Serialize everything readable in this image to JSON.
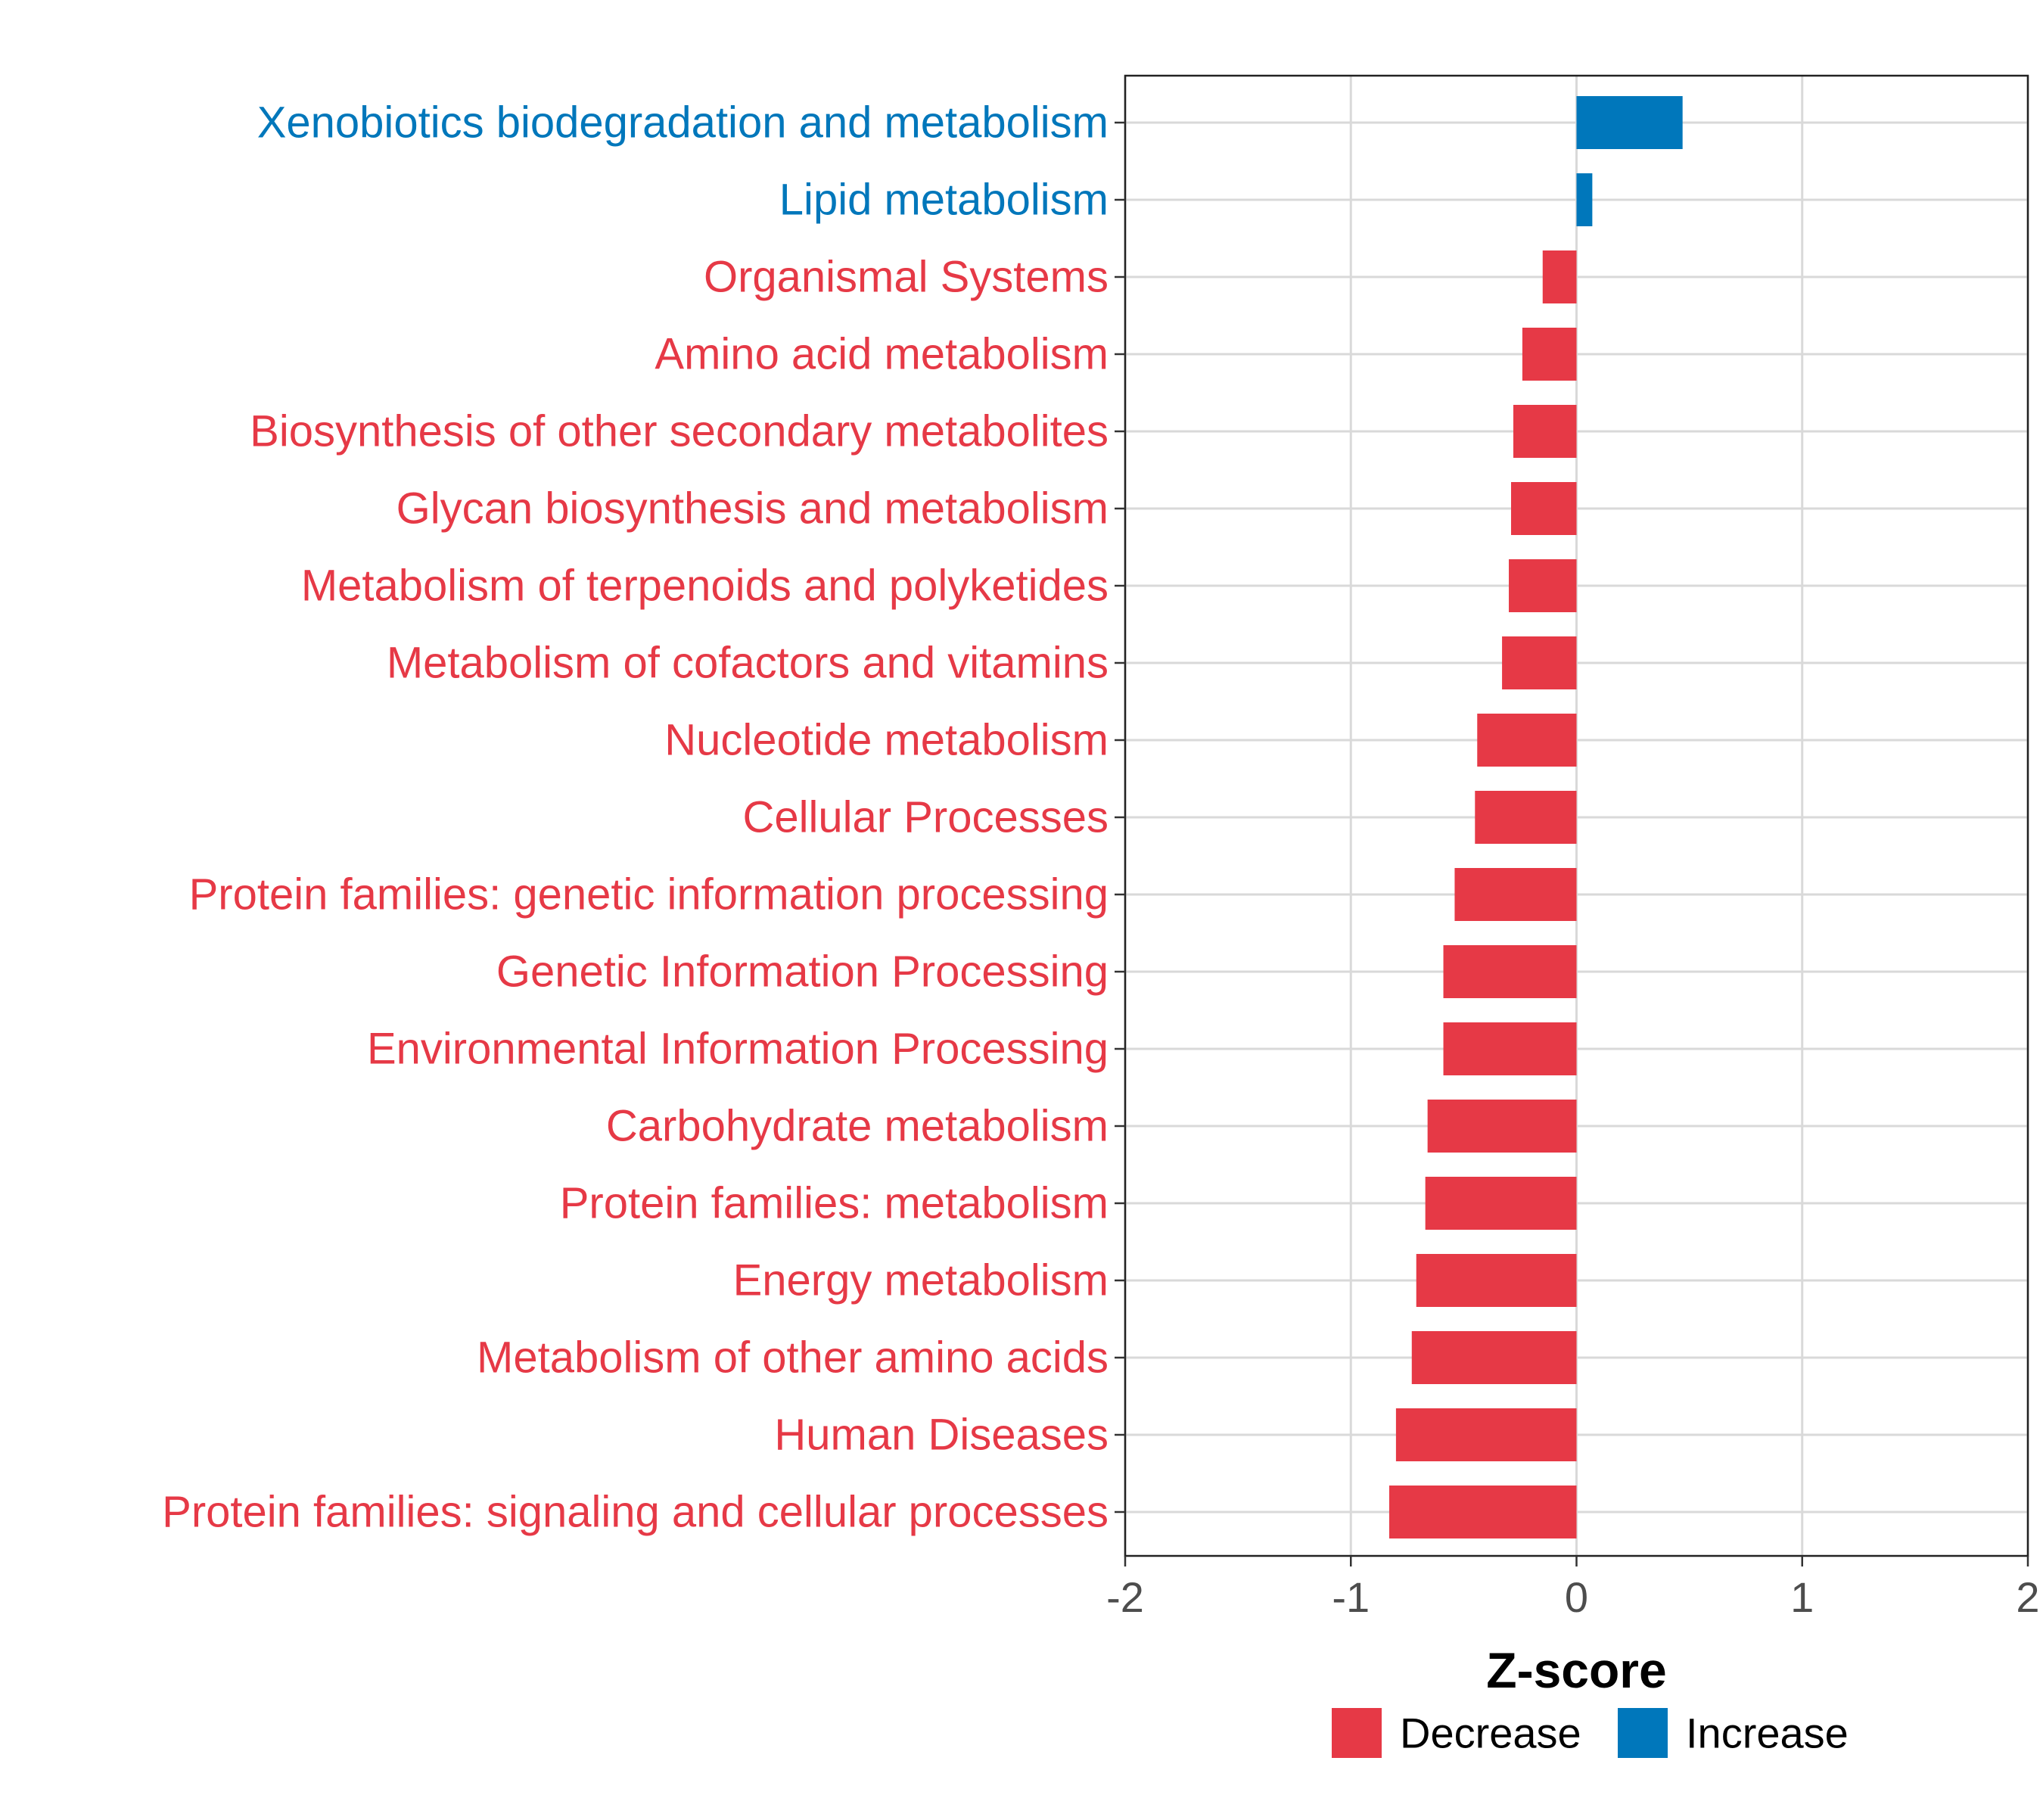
{
  "chart_data": {
    "type": "bar",
    "orientation": "horizontal",
    "title": "",
    "xlabel": "Z-score",
    "ylabel": "",
    "xlim": [
      -2,
      2
    ],
    "xticks": [
      -2,
      -1,
      0,
      1,
      2
    ],
    "xtick_labels": [
      "-2",
      "-1",
      "0",
      "1",
      "2"
    ],
    "grid": true,
    "legend": {
      "placement": "bottom",
      "entries": [
        {
          "name": "Decrease",
          "color": "#E63946"
        },
        {
          "name": "Increase",
          "color": "#0077BB"
        }
      ]
    },
    "categories": [
      "Xenobiotics biodegradation and metabolism",
      "Lipid metabolism",
      "Organismal Systems",
      "Amino acid metabolism",
      "Biosynthesis of other secondary metabolites",
      "Glycan biosynthesis and metabolism",
      "Metabolism of terpenoids and polyketides",
      "Metabolism of cofactors and vitamins",
      "Nucleotide metabolism",
      "Cellular Processes",
      "Protein families: genetic information processing",
      "Genetic Information Processing",
      "Environmental Information Processing",
      "Carbohydrate metabolism",
      "Protein families: metabolism",
      "Energy metabolism",
      "Metabolism of other amino acids",
      "Human Diseases",
      "Protein families: signaling and cellular processes"
    ],
    "values": [
      0.47,
      0.07,
      -0.15,
      -0.24,
      -0.28,
      -0.29,
      -0.3,
      -0.33,
      -0.44,
      -0.45,
      -0.54,
      -0.59,
      -0.59,
      -0.66,
      -0.67,
      -0.71,
      -0.73,
      -0.8,
      -0.83
    ],
    "groups": [
      "Increase",
      "Increase",
      "Decrease",
      "Decrease",
      "Decrease",
      "Decrease",
      "Decrease",
      "Decrease",
      "Decrease",
      "Decrease",
      "Decrease",
      "Decrease",
      "Decrease",
      "Decrease",
      "Decrease",
      "Decrease",
      "Decrease",
      "Decrease",
      "Decrease"
    ]
  }
}
